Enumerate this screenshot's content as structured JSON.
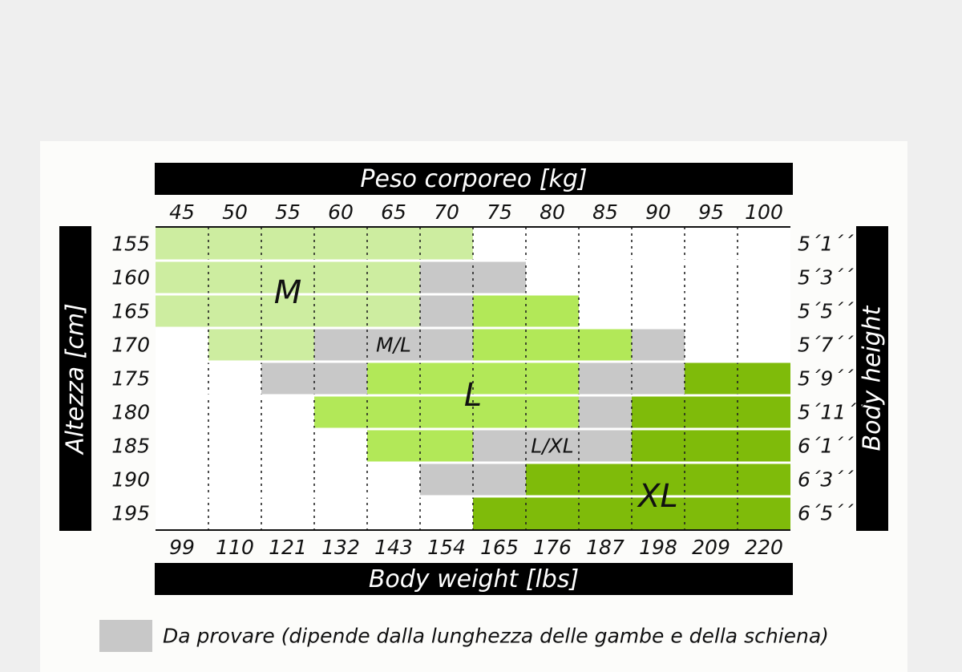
{
  "chart_data": {
    "type": "heatmap",
    "title": "Peso corporeo [kg]",
    "bottom_title": "Body weight [lbs]",
    "ylabel_left": "Altezza [cm]",
    "ylabel_right": "Body height",
    "x_kg": [
      "45",
      "50",
      "55",
      "60",
      "65",
      "70",
      "75",
      "80",
      "85",
      "90",
      "95",
      "100"
    ],
    "x_lbs": [
      "99",
      "110",
      "121",
      "132",
      "143",
      "154",
      "165",
      "176",
      "187",
      "198",
      "209",
      "220"
    ],
    "y_cm": [
      "155",
      "160",
      "165",
      "170",
      "175",
      "180",
      "185",
      "190",
      "195"
    ],
    "y_ft": [
      "5´1´´",
      "5´3´´",
      "5´5´´",
      "5´7´´",
      "5´9´´",
      "5´11´´",
      "6´1´´",
      "6´3´´",
      "6´5´´"
    ],
    "grid": [
      [
        "M",
        "M",
        "M",
        "M",
        "M",
        "M",
        "",
        "",
        "",
        "",
        "",
        ""
      ],
      [
        "M",
        "M",
        "M",
        "M",
        "M",
        "M/L",
        "M/L",
        "",
        "",
        "",
        "",
        ""
      ],
      [
        "M",
        "M",
        "M",
        "M",
        "M",
        "M/L",
        "L",
        "L",
        "",
        "",
        "",
        ""
      ],
      [
        "",
        "M",
        "M",
        "M/L",
        "M/L",
        "M/L",
        "L",
        "L",
        "L",
        "M/L",
        "",
        ""
      ],
      [
        "",
        "",
        "M/L",
        "M/L",
        "L",
        "L",
        "L",
        "L",
        "L/XL",
        "L/XL",
        "XL",
        "XL"
      ],
      [
        "",
        "",
        "",
        "L",
        "L",
        "L",
        "L",
        "L",
        "L/XL",
        "XL",
        "XL",
        "XL"
      ],
      [
        "",
        "",
        "",
        "",
        "L",
        "L",
        "L/XL",
        "L/XL",
        "L/XL",
        "XL",
        "XL",
        "XL"
      ],
      [
        "",
        "",
        "",
        "",
        "",
        "L/XL",
        "L/XL",
        "XL",
        "XL",
        "XL",
        "XL",
        "XL"
      ],
      [
        "",
        "",
        "",
        "",
        "",
        "",
        "XL",
        "XL",
        "XL",
        "XL",
        "XL",
        "XL"
      ]
    ],
    "regions": [
      {
        "name": "M",
        "label": "M"
      },
      {
        "name": "M/L",
        "label": "M/L"
      },
      {
        "name": "L",
        "label": "L"
      },
      {
        "name": "L/XL",
        "label": "L/XL"
      },
      {
        "name": "XL",
        "label": "XL"
      }
    ],
    "colors": {
      "M": "#cdeda0",
      "L": "#b2e858",
      "XL": "#7fbb0a",
      "M/L": "#c8c8c8",
      "L/XL": "#c8c8c8",
      "empty": "#ffffff"
    },
    "legend": [
      {
        "color": "#c8c8c8",
        "label": "Da provare (dipende dalla lunghezza delle gambe e della schiena)"
      }
    ]
  }
}
